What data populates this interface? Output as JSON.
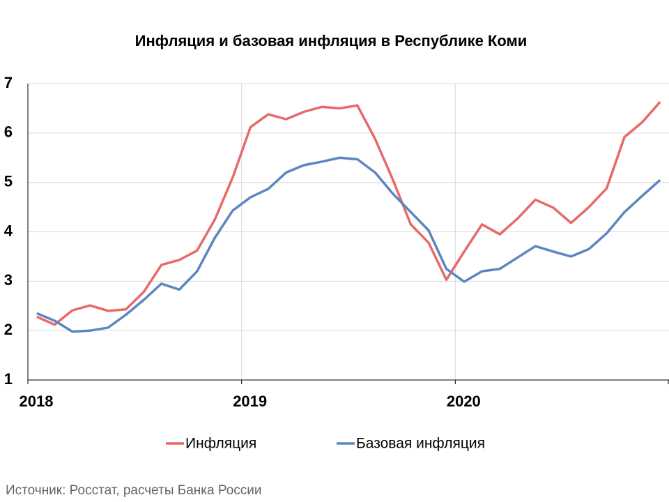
{
  "chart_data": {
    "type": "line",
    "title": "Инфляция и базовая инфляция в Республике Коми",
    "categories": [
      "2018",
      null,
      null,
      null,
      null,
      null,
      null,
      null,
      null,
      null,
      null,
      null,
      "2019",
      null,
      null,
      null,
      null,
      null,
      null,
      null,
      null,
      null,
      null,
      null,
      "2020",
      null,
      null,
      null,
      null,
      null,
      null,
      null,
      null,
      null,
      null,
      null
    ],
    "series": [
      {
        "name": "Инфляция",
        "color": "#e8696b",
        "values": [
          2.28,
          2.12,
          2.41,
          2.51,
          2.4,
          2.43,
          2.78,
          3.33,
          3.43,
          3.62,
          4.25,
          5.1,
          6.12,
          6.38,
          6.28,
          6.43,
          6.53,
          6.5,
          6.56,
          5.88,
          5.05,
          4.15,
          3.78,
          3.03,
          3.6,
          4.15,
          3.95,
          4.27,
          4.65,
          4.49,
          4.18,
          4.5,
          4.88,
          5.92,
          6.22,
          6.63
        ]
      },
      {
        "name": "Базовая инфляция",
        "color": "#5b87c0",
        "values": [
          2.35,
          2.2,
          1.98,
          2.0,
          2.06,
          2.32,
          2.62,
          2.95,
          2.83,
          3.2,
          3.88,
          4.43,
          4.7,
          4.87,
          5.2,
          5.35,
          5.42,
          5.5,
          5.47,
          5.2,
          4.77,
          4.4,
          4.03,
          3.25,
          2.99,
          3.2,
          3.25,
          3.48,
          3.71,
          3.6,
          3.5,
          3.65,
          3.97,
          4.4,
          4.73,
          5.05
        ]
      }
    ],
    "ylim": [
      1,
      7
    ],
    "yticks": [
      1,
      2,
      3,
      4,
      5,
      6,
      7
    ],
    "grid": true,
    "legend": "bottom",
    "source": "Источник: Росстат, расчеты Банка России"
  }
}
